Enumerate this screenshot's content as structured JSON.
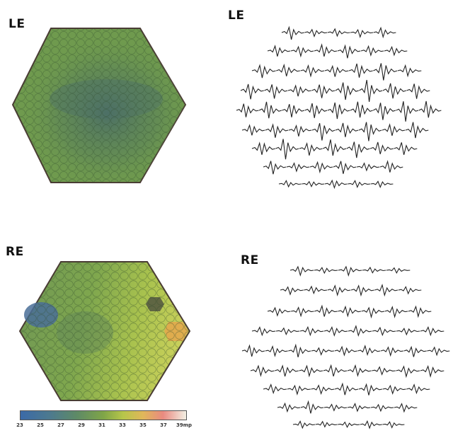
{
  "panels": {
    "top_left_label": "LE",
    "top_right_label": "LE",
    "bottom_left_label": "RE",
    "bottom_right_label": "RE"
  },
  "legend": {
    "ticks": [
      "23",
      "25",
      "27",
      "29",
      "31",
      "33",
      "35",
      "37",
      "39mp"
    ]
  },
  "colors": {
    "le_map_base": "#6f9a4e",
    "le_map_dark": "#4f7a5e",
    "re_map_base": "#7aa54c",
    "re_map_light": "#c9d35a",
    "re_map_blue": "#4a6f98",
    "trace": "#222222"
  }
}
